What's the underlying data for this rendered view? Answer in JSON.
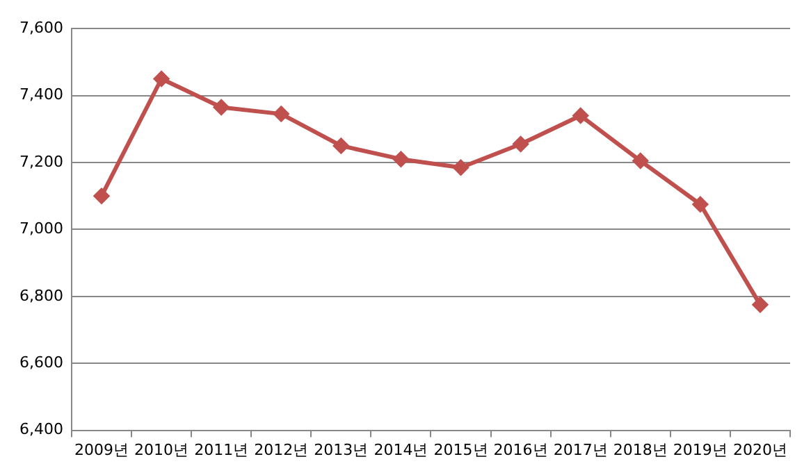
{
  "chart_data": {
    "type": "line",
    "categories": [
      "2009년",
      "2010년",
      "2011년",
      "2012년",
      "2013년",
      "2014년",
      "2015년",
      "2016년",
      "2017년",
      "2018년",
      "2019년",
      "2020년"
    ],
    "series": [
      {
        "color": "#c0504d",
        "values": [
          7100,
          7450,
          7365,
          7345,
          7250,
          7210,
          7185,
          7255,
          7340,
          7205,
          7075,
          6775
        ]
      }
    ],
    "ylim": [
      6400,
      7600
    ],
    "yticks": [
      {
        "value": 6400,
        "label": "6,400"
      },
      {
        "value": 6600,
        "label": "6,600"
      },
      {
        "value": 6800,
        "label": "6,800"
      },
      {
        "value": 7000,
        "label": "7,000"
      },
      {
        "value": 7200,
        "label": "7,200"
      },
      {
        "value": 7400,
        "label": "7,400"
      },
      {
        "value": 7600,
        "label": "7,600"
      }
    ],
    "grid": "y",
    "legend": false,
    "marker": "diamond",
    "line_style": "solid"
  }
}
